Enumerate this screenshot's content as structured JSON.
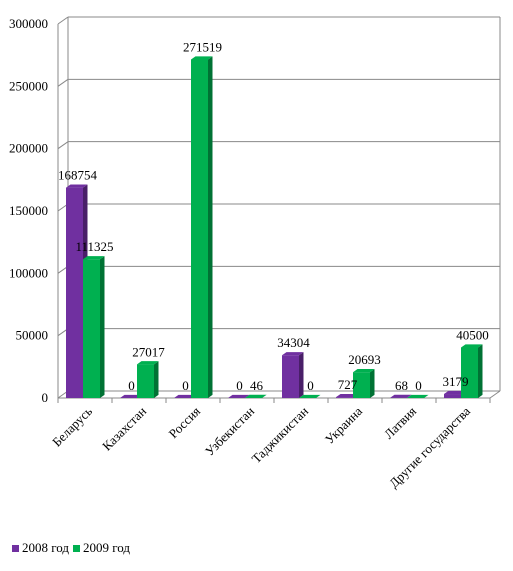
{
  "chart_data": {
    "type": "bar",
    "categories": [
      "Беларусь",
      "Казахстан",
      "Россия",
      "Узбекистан",
      "Таджикистан",
      "Украина",
      "Латвия",
      "Другие государства"
    ],
    "series": [
      {
        "name": "2008 год",
        "color": "#7030a0",
        "values": [
          168754,
          0,
          0,
          0,
          34304,
          727,
          68,
          3179
        ]
      },
      {
        "name": "2009 год",
        "color": "#00b050",
        "values": [
          111325,
          27017,
          271519,
          46,
          0,
          20693,
          0,
          40500
        ]
      }
    ],
    "data_labels": [
      [
        "168754",
        "111325"
      ],
      [
        "0",
        "27017"
      ],
      [
        "0",
        "271519"
      ],
      [
        "0",
        "46"
      ],
      [
        "34304",
        "0"
      ],
      [
        "727",
        "20693"
      ],
      [
        "68",
        "0"
      ],
      [
        "3179",
        "40500"
      ]
    ],
    "y_ticks": [
      "0",
      "50000",
      "100000",
      "150000",
      "200000",
      "250000",
      "300000"
    ],
    "ylim": [
      0,
      300000
    ],
    "grid": true,
    "style": "3d-bar",
    "legend_position": "bottom-left"
  }
}
